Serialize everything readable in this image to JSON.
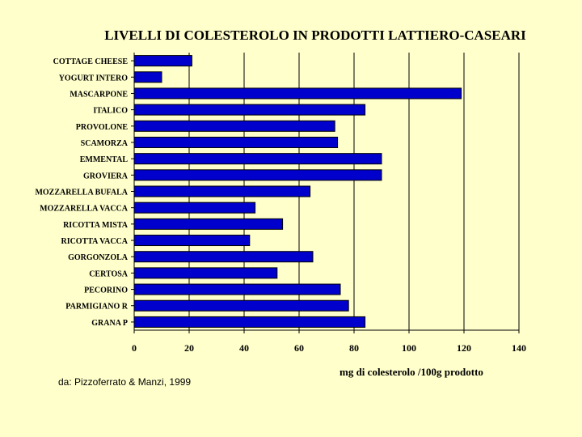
{
  "chart_data": {
    "type": "bar",
    "orientation": "horizontal",
    "title": "LIVELLI DI COLESTEROLO IN PRODOTTI LATTIERO-CASEARI",
    "xlabel": "mg di colesterolo /100g prodotto",
    "ylabel": "",
    "categories": [
      "COTTAGE CHEESE",
      "YOGURT INTERO",
      "MASCARPONE",
      "ITALICO",
      "PROVOLONE",
      "SCAMORZA",
      "EMMENTAL",
      "GROVIERA",
      "MOZZARELLA BUFALA",
      "MOZZARELLA VACCA",
      "RICOTTA MISTA",
      "RICOTTA VACCA",
      "GORGONZOLA",
      "CERTOSA",
      "PECORINO",
      "PARMIGIANO R",
      "GRANA P"
    ],
    "values": [
      21,
      10,
      119,
      84,
      73,
      74,
      90,
      90,
      64,
      44,
      54,
      42,
      65,
      52,
      75,
      78,
      84
    ],
    "xlim": [
      0,
      140
    ],
    "xticks": [
      0,
      20,
      40,
      60,
      80,
      100,
      120,
      140
    ],
    "grid": true,
    "bar_color": "#0000cc"
  },
  "source": "da: Pizzoferrato &  Manzi, 1999",
  "colors": {
    "background": "#ffffcc",
    "bar": "#0000cc",
    "grid": "#000000"
  }
}
